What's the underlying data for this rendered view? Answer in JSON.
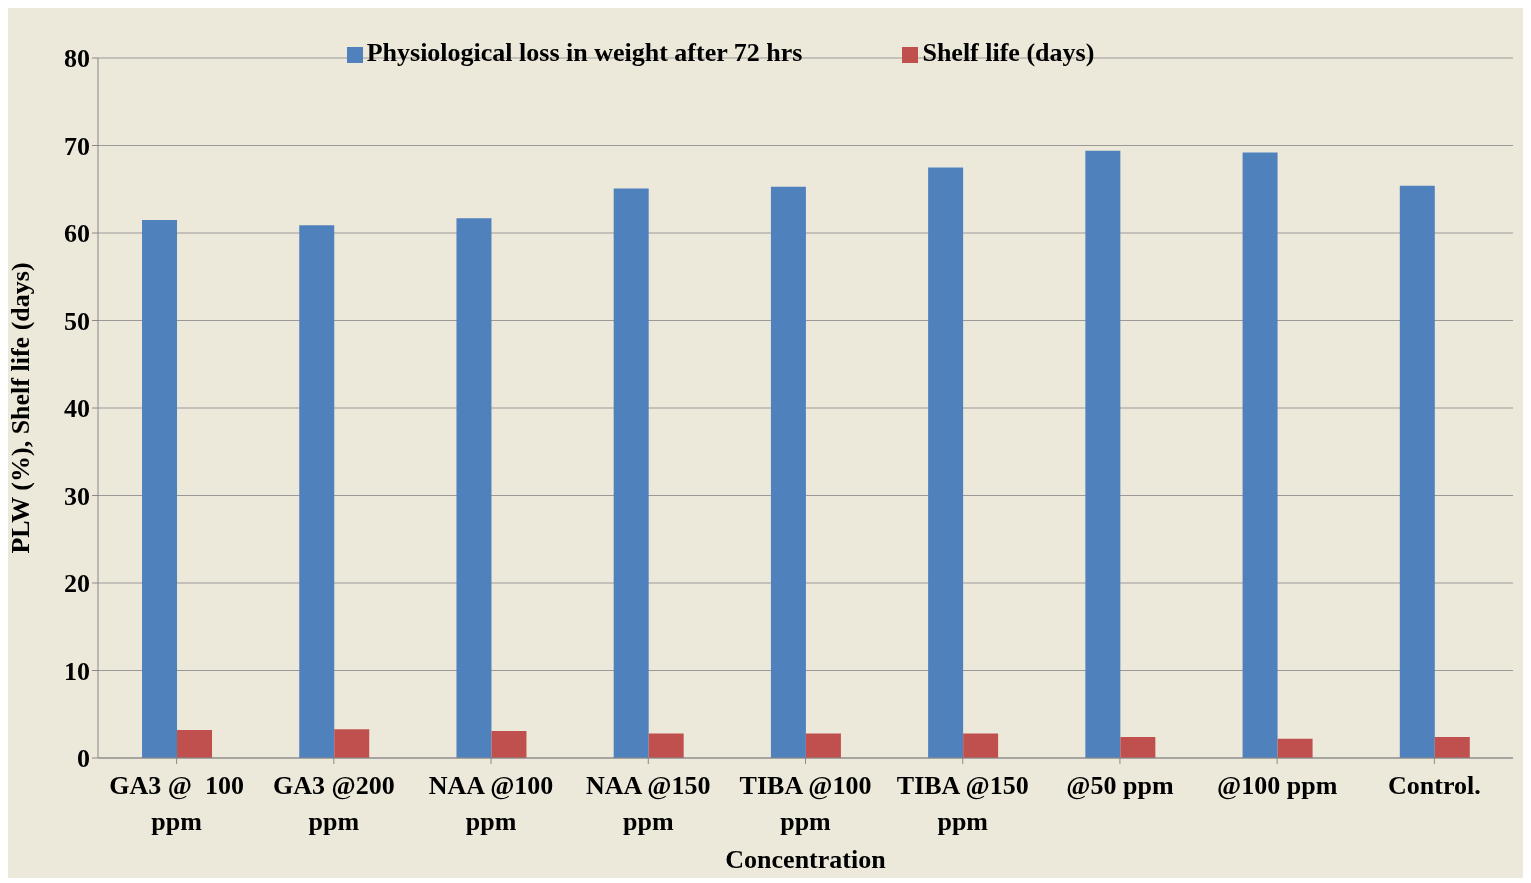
{
  "chart_data": {
    "type": "bar",
    "xlabel": "Concentration",
    "ylabel": "PLW (%), Shelf life (days)",
    "categories": [
      "GA3 @  100 ppm",
      "GA3 @200 ppm",
      "NAA @100 ppm",
      "NAA @150 ppm",
      "TIBA @100 ppm",
      "TIBA @150 ppm",
      "@50 ppm",
      "@100 ppm",
      "Control."
    ],
    "series": [
      {
        "name": "Physiological loss in weight after 72 hrs",
        "color": "#4f81bd",
        "values": [
          61.5,
          60.9,
          61.7,
          65.1,
          65.3,
          67.5,
          69.4,
          69.2,
          65.4
        ]
      },
      {
        "name": "Shelf life (days)",
        "color": "#c0504d",
        "values": [
          3.2,
          3.3,
          3.1,
          2.8,
          2.8,
          2.8,
          2.4,
          2.2,
          2.4
        ]
      }
    ],
    "ylim": [
      0,
      80
    ],
    "yticks": [
      0,
      10,
      20,
      30,
      40,
      50,
      60,
      70,
      80
    ],
    "grid": "y",
    "legend": "top"
  }
}
